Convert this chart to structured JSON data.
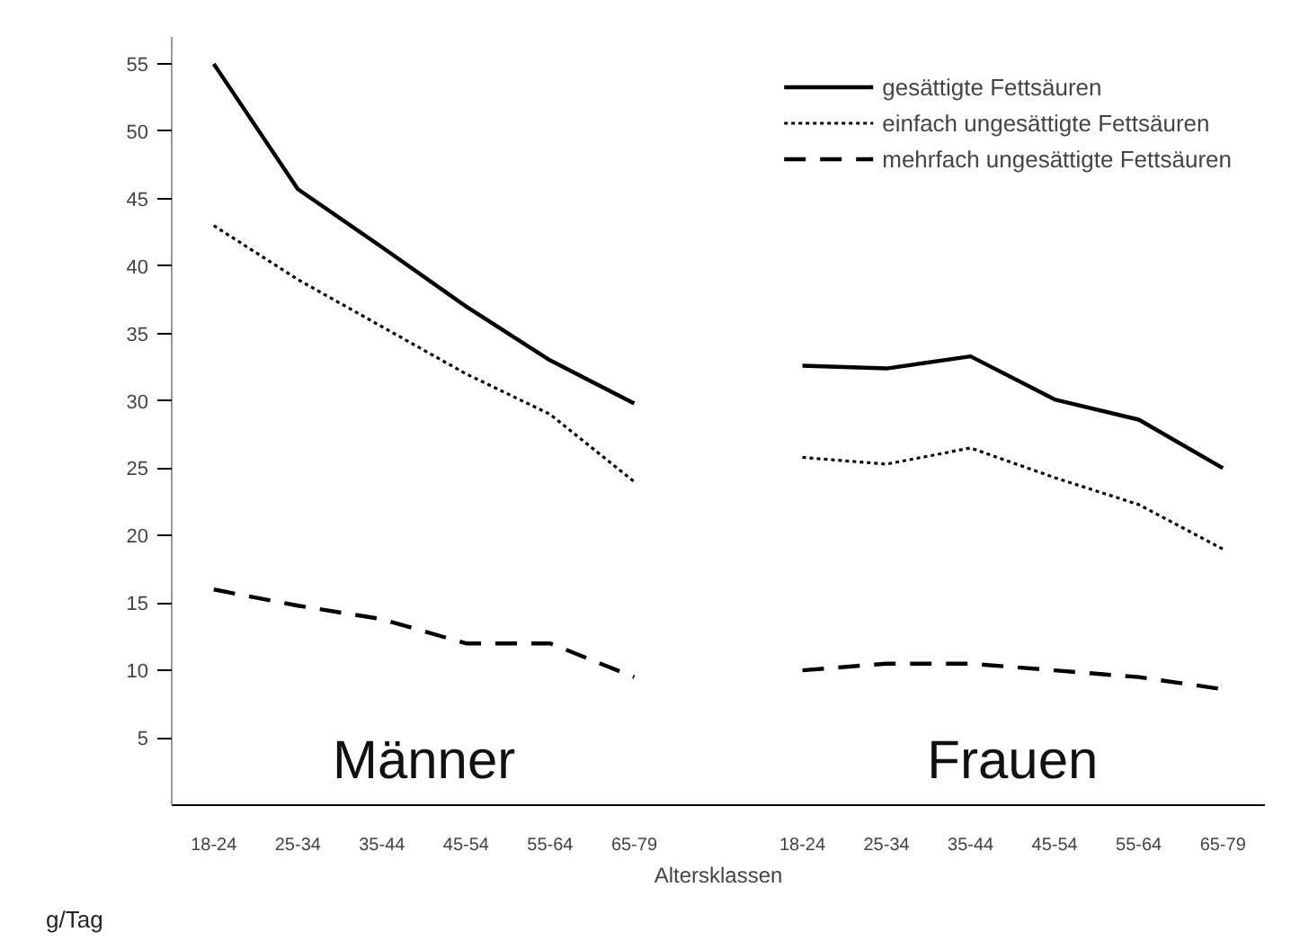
{
  "chart_data": {
    "type": "line",
    "xlabel": "Altersklassen",
    "ylabel": "g/Tag",
    "categories": [
      "18-24",
      "25-34",
      "35-44",
      "45-54",
      "55-64",
      "65-79",
      null,
      "18-24",
      "25-34",
      "35-44",
      "45-54",
      "55-64",
      "65-79"
    ],
    "series": [
      {
        "name": "gesättigte Fettsäuren",
        "color": "#000000",
        "line_style": "solid",
        "values": [
          55,
          45.7,
          41.4,
          37,
          33,
          29.8,
          null,
          32.6,
          32.4,
          33.3,
          30.1,
          28.6,
          25
        ]
      },
      {
        "name": "einfach ungesättigte Fettsäuren",
        "color": "#000000",
        "line_style": "dotted",
        "values": [
          43,
          39,
          35.5,
          32,
          29,
          24,
          null,
          25.8,
          25.3,
          26.5,
          24.3,
          22.3,
          19
        ]
      },
      {
        "name": "mehrfach ungesättigte Fettsäuren",
        "color": "#000000",
        "line_style": "dashed",
        "values": [
          16,
          14.8,
          13.8,
          12,
          12,
          9.5,
          null,
          10,
          10.5,
          10.5,
          10,
          9.5,
          8.6
        ]
      }
    ],
    "ylim": [
      0,
      57
    ],
    "yticks": [
      5,
      10,
      15,
      20,
      25,
      30,
      35,
      40,
      45,
      50,
      55
    ],
    "annotations": [
      "Männer",
      "Frauen"
    ],
    "legend": "top right",
    "grid": false,
    "marker": "none"
  }
}
